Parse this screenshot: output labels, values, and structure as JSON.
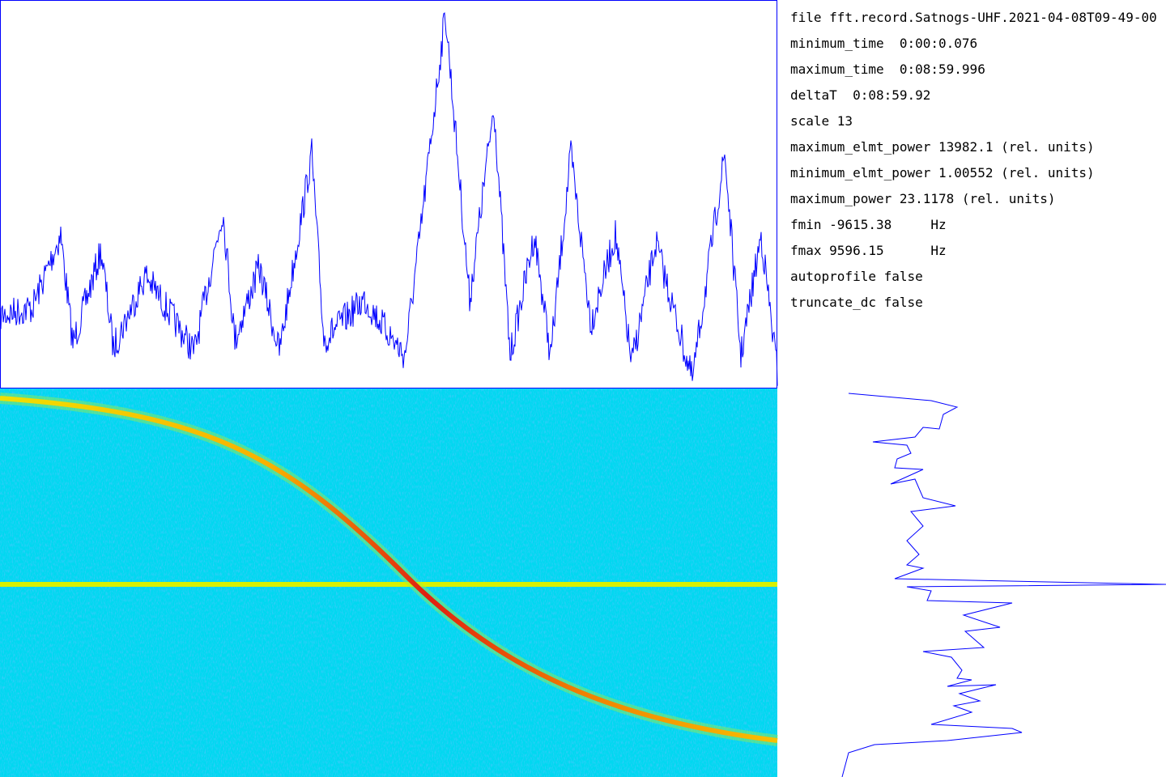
{
  "info_lines": [
    "file fft.record.Satnogs-UHF.2021-04-08T09-49-00",
    "minimum_time  0:00:0.076",
    "maximum_time  0:08:59.996",
    "deltaT  0:08:59.92",
    "scale 13",
    "maximum_elmt_power 13982.1 (rel. units)",
    "minimum_elmt_power 1.00552 (rel. units)",
    "maximum_power 23.1178 (rel. units)",
    "fmin -9615.38     Hz",
    "fmax 9596.15      Hz",
    "autoprofile false",
    "truncate_dc false"
  ]
}
